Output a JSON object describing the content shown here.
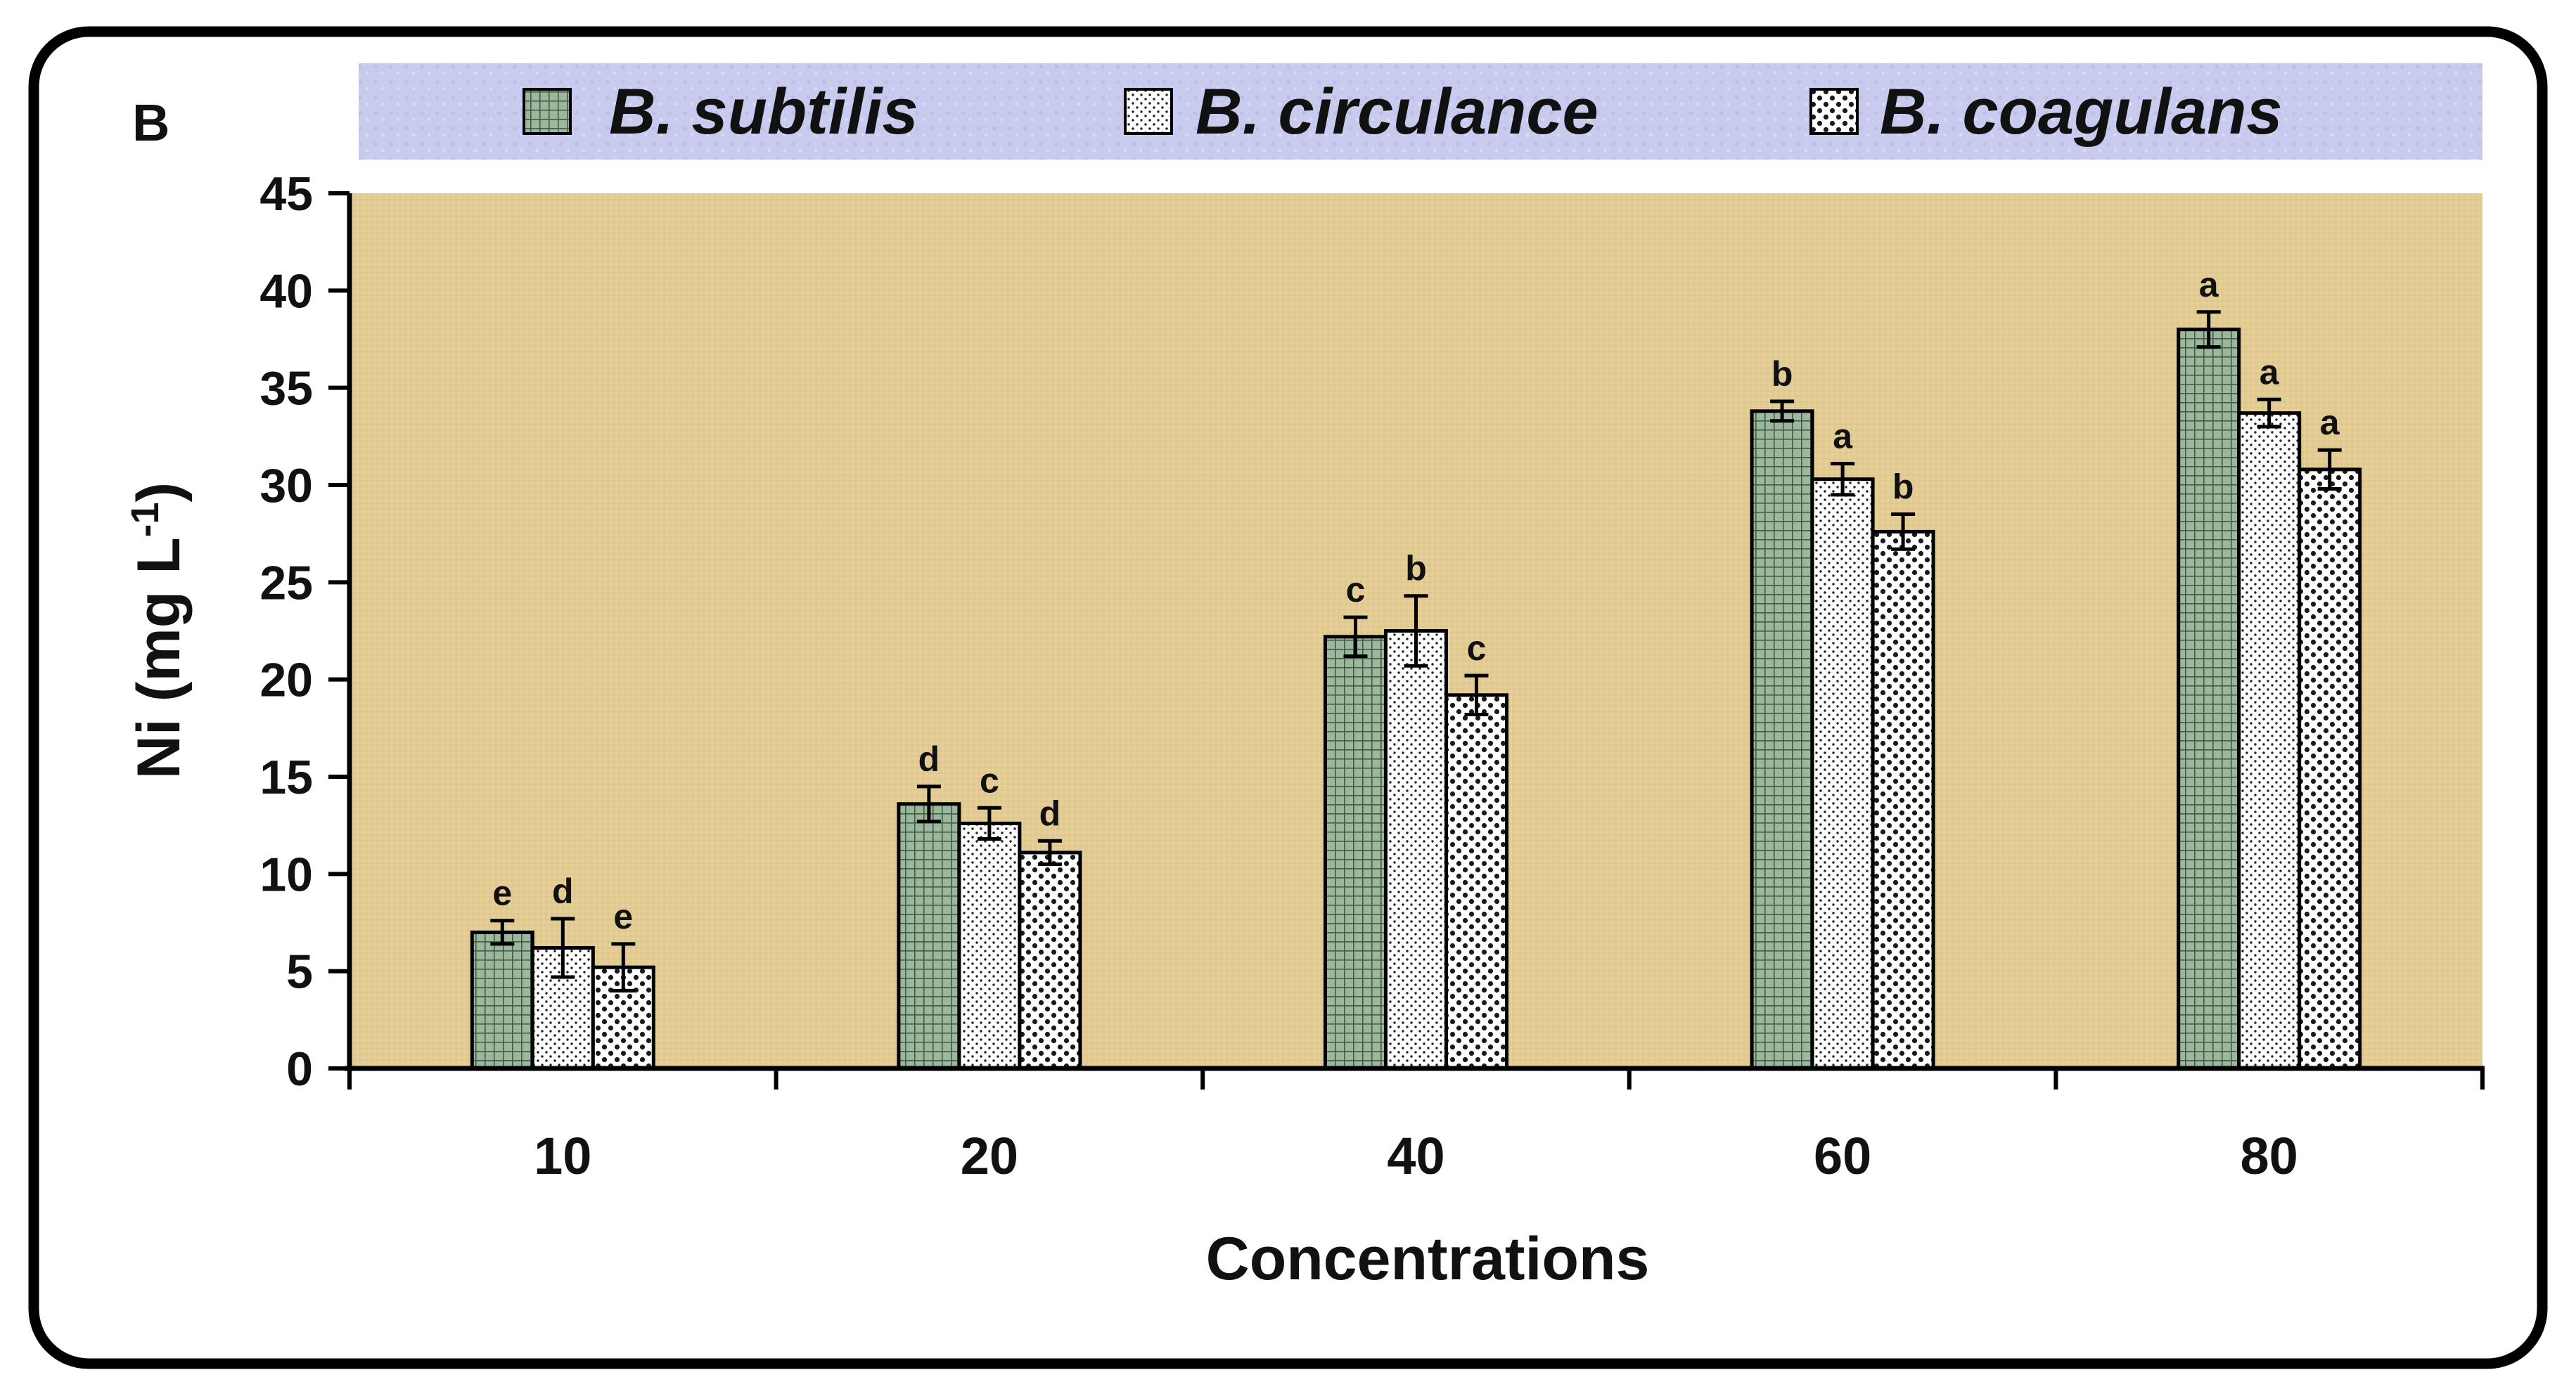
{
  "chart_data": {
    "type": "bar",
    "panel_label": "B",
    "title": "",
    "xlabel": "Concentrations",
    "ylabel": {
      "main": "Ni (mg L",
      "superscript": "-1",
      "close": ")"
    },
    "ylim": [
      0,
      45
    ],
    "yticks": [
      0,
      5,
      10,
      15,
      20,
      25,
      30,
      35,
      40,
      45
    ],
    "categories": [
      "10",
      "20",
      "40",
      "60",
      "80"
    ],
    "legend_position": "top",
    "series": [
      {
        "name": "B. subtilis",
        "pattern": "grid",
        "color": "#9CB79E",
        "values": [
          7.0,
          13.6,
          22.2,
          33.8,
          38.0
        ],
        "errors": [
          0.6,
          0.9,
          1.0,
          0.5,
          0.9
        ],
        "letters": [
          "e",
          "d",
          "c",
          "b",
          "a"
        ]
      },
      {
        "name": "B. circulance",
        "pattern": "fine-dots",
        "color": "#FFFFFF",
        "values": [
          6.2,
          12.6,
          22.5,
          30.3,
          33.7
        ],
        "errors": [
          1.5,
          0.8,
          1.8,
          0.8,
          0.7
        ],
        "letters": [
          "d",
          "c",
          "b",
          "a",
          "a"
        ]
      },
      {
        "name": "B. coagulans",
        "pattern": "coarse-dots",
        "color": "#FFFFFF",
        "values": [
          5.2,
          11.1,
          19.2,
          27.6,
          30.8
        ],
        "errors": [
          1.2,
          0.6,
          1.0,
          0.9,
          1.0
        ],
        "letters": [
          "e",
          "d",
          "c",
          "b",
          "a"
        ]
      }
    ]
  },
  "colors": {
    "plot_background": "#E3CC94",
    "legend_background": "#C8CBEE",
    "frame": "#000000"
  }
}
